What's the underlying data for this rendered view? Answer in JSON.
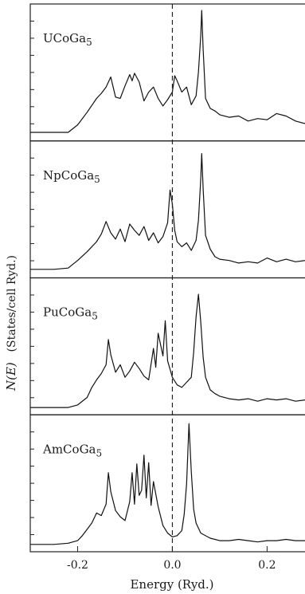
{
  "chart_data": {
    "type": "line",
    "xlabel": "Energy (Ryd.)",
    "ylabel_main": "N(E)",
    "ylabel_unit": "(States/cell Ryd.)",
    "xlim": [
      -0.3,
      0.28
    ],
    "x_ticks": [
      -0.2,
      0.0,
      0.2
    ],
    "x_tick_labels": [
      "-0.2",
      "0.0",
      "0.2"
    ],
    "fermi_level": 0.0,
    "grid": false,
    "panels": [
      {
        "label": "UCoGa",
        "subscript": "5",
        "ylim": [
          0,
          10
        ],
        "x": [
          -0.3,
          -0.25,
          -0.22,
          -0.2,
          -0.18,
          -0.16,
          -0.15,
          -0.14,
          -0.13,
          -0.12,
          -0.11,
          -0.1,
          -0.09,
          -0.085,
          -0.08,
          -0.07,
          -0.06,
          -0.05,
          -0.04,
          -0.03,
          -0.02,
          -0.01,
          0.0,
          0.005,
          0.01,
          0.02,
          0.03,
          0.04,
          0.05,
          0.055,
          0.06,
          0.062,
          0.065,
          0.07,
          0.08,
          0.09,
          0.1,
          0.12,
          0.14,
          0.16,
          0.18,
          0.2,
          0.22,
          0.24,
          0.26,
          0.28
        ],
        "values": [
          0.3,
          0.3,
          0.3,
          0.9,
          1.9,
          3.0,
          3.4,
          3.9,
          4.7,
          3.1,
          3.0,
          4.0,
          4.9,
          4.4,
          5.0,
          4.3,
          2.8,
          3.5,
          3.9,
          3.0,
          2.4,
          2.9,
          3.5,
          4.8,
          4.4,
          3.5,
          3.9,
          2.5,
          3.2,
          5.1,
          8.0,
          10.0,
          6.9,
          3.0,
          2.2,
          2.0,
          1.7,
          1.5,
          1.6,
          1.2,
          1.4,
          1.3,
          1.8,
          1.6,
          1.2,
          1.0
        ]
      },
      {
        "label": "NpCoGa",
        "subscript": "5",
        "ylim": [
          0,
          10
        ],
        "x": [
          -0.3,
          -0.25,
          -0.22,
          -0.2,
          -0.18,
          -0.16,
          -0.15,
          -0.14,
          -0.13,
          -0.12,
          -0.11,
          -0.1,
          -0.09,
          -0.08,
          -0.07,
          -0.06,
          -0.05,
          -0.04,
          -0.03,
          -0.02,
          -0.01,
          -0.005,
          0.0,
          0.005,
          0.01,
          0.02,
          0.03,
          0.04,
          0.05,
          0.055,
          0.06,
          0.062,
          0.065,
          0.07,
          0.08,
          0.09,
          0.1,
          0.12,
          0.14,
          0.16,
          0.18,
          0.2,
          0.22,
          0.24,
          0.26,
          0.28
        ],
        "values": [
          0.3,
          0.3,
          0.4,
          1.0,
          1.7,
          2.5,
          3.1,
          4.1,
          3.2,
          2.7,
          3.5,
          2.5,
          3.9,
          3.4,
          3.0,
          3.7,
          2.6,
          3.2,
          2.4,
          2.9,
          4.0,
          6.6,
          5.5,
          3.4,
          2.5,
          2.1,
          2.4,
          1.8,
          2.6,
          4.2,
          7.5,
          9.5,
          6.7,
          3.0,
          1.9,
          1.3,
          1.1,
          1.0,
          0.8,
          0.9,
          0.8,
          1.2,
          0.9,
          1.1,
          0.9,
          1.0
        ]
      },
      {
        "label": "PuCoGa",
        "subscript": "5",
        "ylim": [
          0,
          10
        ],
        "x": [
          -0.3,
          -0.25,
          -0.22,
          -0.2,
          -0.18,
          -0.17,
          -0.16,
          -0.15,
          -0.14,
          -0.135,
          -0.13,
          -0.12,
          -0.11,
          -0.1,
          -0.09,
          -0.08,
          -0.07,
          -0.06,
          -0.05,
          -0.04,
          -0.035,
          -0.03,
          -0.02,
          -0.015,
          -0.01,
          0.0,
          0.01,
          0.02,
          0.03,
          0.04,
          0.045,
          0.05,
          0.055,
          0.06,
          0.065,
          0.07,
          0.08,
          0.09,
          0.1,
          0.12,
          0.14,
          0.16,
          0.18,
          0.2,
          0.22,
          0.24,
          0.26,
          0.28
        ],
        "values": [
          0.2,
          0.2,
          0.2,
          0.4,
          1.0,
          1.8,
          2.4,
          2.9,
          3.6,
          5.6,
          4.4,
          3.0,
          3.6,
          2.6,
          3.1,
          3.8,
          3.3,
          2.7,
          2.4,
          4.9,
          3.4,
          6.1,
          4.3,
          7.1,
          3.9,
          2.6,
          2.0,
          1.8,
          2.2,
          2.6,
          4.6,
          7.4,
          9.2,
          7.0,
          4.2,
          2.6,
          1.6,
          1.3,
          1.1,
          0.9,
          0.8,
          0.9,
          0.7,
          0.9,
          0.8,
          0.9,
          0.7,
          0.8
        ]
      },
      {
        "label": "AmCoGa",
        "subscript": "5",
        "ylim": [
          0,
          10
        ],
        "x": [
          -0.3,
          -0.25,
          -0.22,
          -0.2,
          -0.19,
          -0.18,
          -0.17,
          -0.16,
          -0.15,
          -0.14,
          -0.135,
          -0.13,
          -0.12,
          -0.11,
          -0.1,
          -0.09,
          -0.085,
          -0.08,
          -0.075,
          -0.07,
          -0.065,
          -0.06,
          -0.055,
          -0.05,
          -0.045,
          -0.04,
          -0.03,
          -0.02,
          -0.01,
          0.0,
          0.01,
          0.02,
          0.025,
          0.03,
          0.035,
          0.04,
          0.045,
          0.05,
          0.06,
          0.08,
          0.1,
          0.12,
          0.14,
          0.16,
          0.18,
          0.2,
          0.22,
          0.24,
          0.26,
          0.28
        ],
        "values": [
          0.2,
          0.2,
          0.3,
          0.5,
          0.9,
          1.4,
          1.9,
          2.7,
          2.5,
          3.4,
          5.9,
          4.4,
          2.9,
          2.4,
          2.1,
          3.6,
          5.9,
          3.4,
          6.6,
          4.1,
          4.5,
          7.3,
          3.9,
          6.7,
          3.3,
          5.2,
          3.2,
          1.7,
          1.1,
          0.8,
          0.9,
          1.3,
          2.6,
          5.0,
          9.8,
          6.0,
          3.0,
          1.9,
          1.1,
          0.7,
          0.5,
          0.5,
          0.6,
          0.5,
          0.4,
          0.5,
          0.5,
          0.6,
          0.5,
          0.5
        ]
      }
    ]
  }
}
